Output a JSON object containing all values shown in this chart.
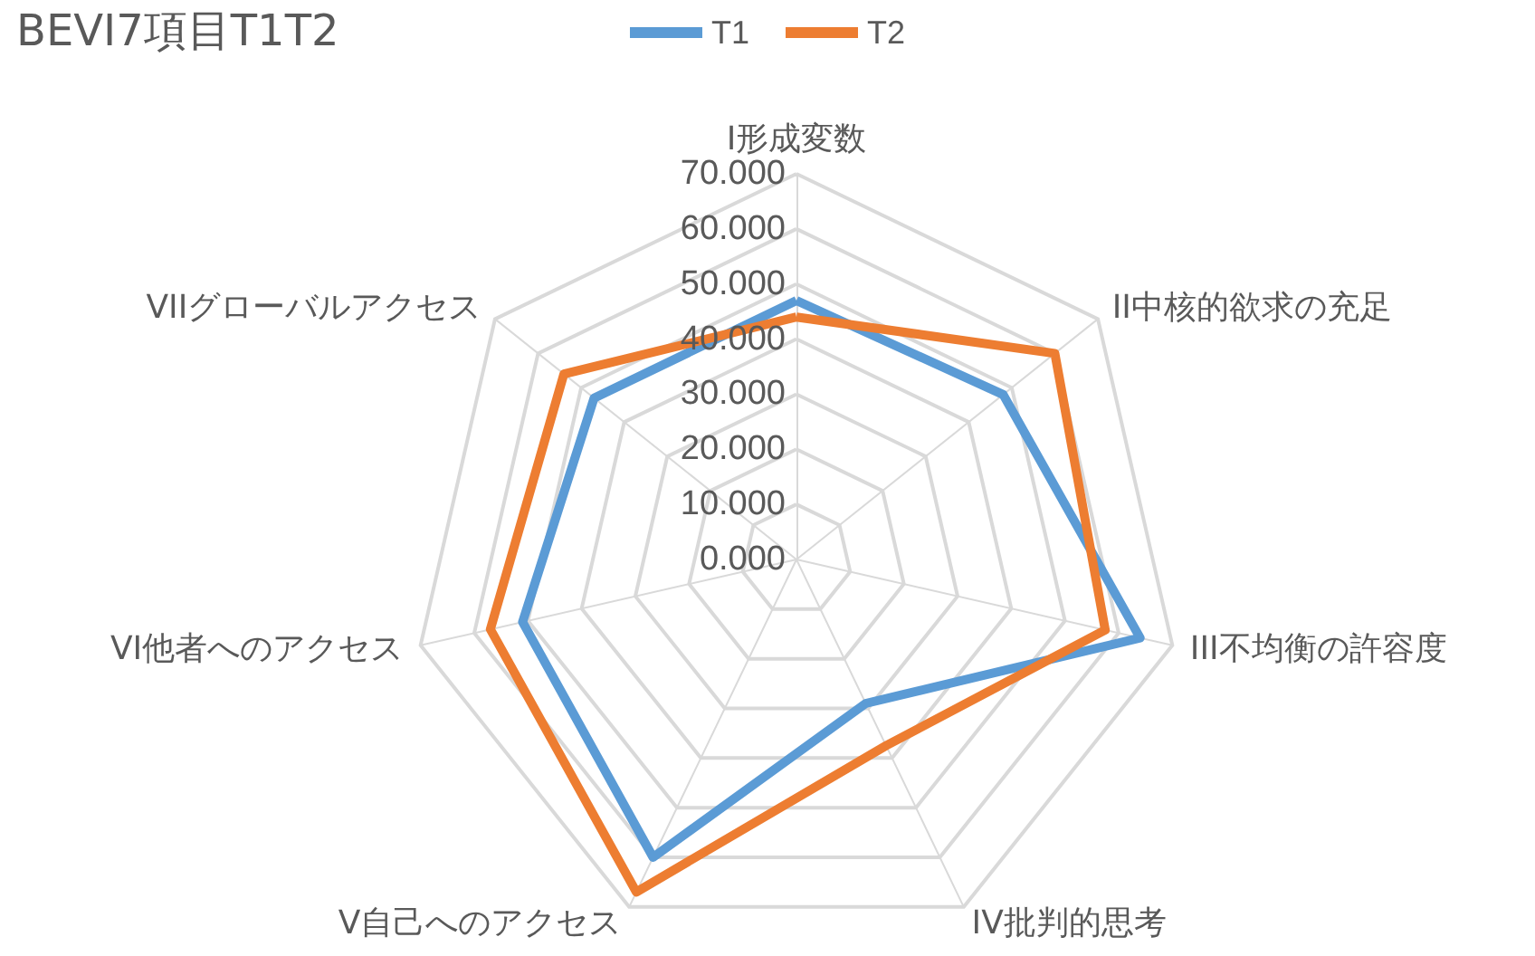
{
  "chart_data": {
    "type": "radar",
    "title": "BEVI7項目T1T2",
    "categories": [
      "I形成変数",
      "II中核的欲求の充足",
      "III不均衡の許容度",
      "IV批判的思考",
      "V自己へのアクセス",
      "VI他者へのアクセス",
      "VIIグローバルアクセス"
    ],
    "series": [
      {
        "name": "T1",
        "color": "#5b9bd5",
        "values": [
          47,
          48,
          64,
          29,
          60,
          51,
          47
        ]
      },
      {
        "name": "T2",
        "color": "#ed7d31",
        "values": [
          44,
          60,
          57.5,
          37.5,
          67,
          57,
          54
        ]
      }
    ],
    "ylim": [
      0,
      70
    ],
    "yticks": [
      {
        "value": 0,
        "label": "0.000"
      },
      {
        "value": 10,
        "label": "10.000"
      },
      {
        "value": 20,
        "label": "20.000"
      },
      {
        "value": 30,
        "label": "30.000"
      },
      {
        "value": 40,
        "label": "40.000"
      },
      {
        "value": 50,
        "label": "50.000"
      },
      {
        "value": 60,
        "label": "60.000"
      },
      {
        "value": 70,
        "label": "70.000"
      }
    ],
    "grid": true,
    "legend": "top",
    "marker": "none",
    "line_style": "solid"
  }
}
